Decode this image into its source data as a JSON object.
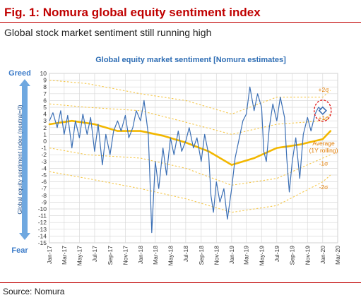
{
  "figure": {
    "title": "Fig. 1: Nomura global equity sentiment index",
    "subtitle": "Global stock market sentiment still running high",
    "source": "Source:  Nomura"
  },
  "colors": {
    "series": "#3b6fb5",
    "average": "#f2b700",
    "bands": "#f5c74a",
    "band_labels": "#e07b00",
    "chart_title": "#2e6db4",
    "axis_label": "#3d7cc9",
    "marker": "#e01010"
  },
  "chart_data": {
    "type": "line",
    "title": "Global equity market sentiment [Nomura estimates]",
    "ylabel": "Global equity sentiment index (neutral=0)",
    "y_top_label": "Greed",
    "y_bottom_label": "Fear",
    "ylim": [
      -15,
      10
    ],
    "yticks": [
      10,
      9,
      8,
      7,
      6,
      5,
      4,
      3,
      2,
      1,
      0,
      -1,
      -2,
      -3,
      -4,
      -5,
      -6,
      -7,
      -8,
      -9,
      -10,
      -11,
      -12,
      -13,
      -14,
      -15
    ],
    "xlim": [
      "2017-01",
      "2020-03"
    ],
    "xticks": [
      "Jan-17",
      "Mar-17",
      "May-17",
      "Jul-17",
      "Sep-17",
      "Nov-17",
      "Jan-18",
      "Mar-18",
      "May-18",
      "Jul-18",
      "Sep-18",
      "Nov-18",
      "Jan-19",
      "Mar-19",
      "May-19",
      "Jul-19",
      "Sep-19",
      "Nov-19",
      "Jan-20",
      "Mar-20"
    ],
    "grid": true,
    "annotations": {
      "plus2": "+2σ",
      "plus1": "+1σ",
      "average": "Average\n(1Y rolling)",
      "minus1": "-1σ",
      "minus2": "-2σ"
    },
    "series": [
      {
        "name": "Sentiment index",
        "points": [
          [
            "2017-01",
            3.0
          ],
          [
            "2017-01-15",
            4.2
          ],
          [
            "2017-02",
            2.0
          ],
          [
            "2017-02-15",
            4.5
          ],
          [
            "2017-03",
            1.0
          ],
          [
            "2017-03-15",
            3.8
          ],
          [
            "2017-04",
            -1.0
          ],
          [
            "2017-04-15",
            3.0
          ],
          [
            "2017-05",
            0.5
          ],
          [
            "2017-05-15",
            4.0
          ],
          [
            "2017-06",
            1.0
          ],
          [
            "2017-06-15",
            3.5
          ],
          [
            "2017-07",
            -1.5
          ],
          [
            "2017-07-15",
            2.5
          ],
          [
            "2017-08",
            -3.5
          ],
          [
            "2017-08-15",
            1.0
          ],
          [
            "2017-09",
            -2.0
          ],
          [
            "2017-09-15",
            1.5
          ],
          [
            "2017-10",
            3.0
          ],
          [
            "2017-10-15",
            1.5
          ],
          [
            "2017-11",
            3.8
          ],
          [
            "2017-11-15",
            0.5
          ],
          [
            "2017-12",
            2.0
          ],
          [
            "2017-12-15",
            4.5
          ],
          [
            "2018-01",
            3.0
          ],
          [
            "2018-01-15",
            6.0
          ],
          [
            "2018-02",
            1.0
          ],
          [
            "2018-02-08",
            -6.0
          ],
          [
            "2018-02-15",
            -13.5
          ],
          [
            "2018-03",
            -3.0
          ],
          [
            "2018-03-15",
            -7.0
          ],
          [
            "2018-04",
            -1.0
          ],
          [
            "2018-04-15",
            -5.0
          ],
          [
            "2018-05",
            0.5
          ],
          [
            "2018-05-15",
            -2.0
          ],
          [
            "2018-06",
            1.5
          ],
          [
            "2018-06-15",
            -1.5
          ],
          [
            "2018-07",
            0.0
          ],
          [
            "2018-07-15",
            2.0
          ],
          [
            "2018-08",
            -1.0
          ],
          [
            "2018-08-15",
            0.5
          ],
          [
            "2018-09",
            -3.0
          ],
          [
            "2018-09-15",
            1.0
          ],
          [
            "2018-10",
            -2.0
          ],
          [
            "2018-10-10",
            -8.0
          ],
          [
            "2018-10-20",
            -10.5
          ],
          [
            "2018-11",
            -6.0
          ],
          [
            "2018-11-15",
            -9.0
          ],
          [
            "2018-12",
            -7.0
          ],
          [
            "2018-12-15",
            -11.5
          ],
          [
            "2019-01",
            -7.0
          ],
          [
            "2019-01-15",
            -2.5
          ],
          [
            "2019-02",
            0.5
          ],
          [
            "2019-02-15",
            3.0
          ],
          [
            "2019-03",
            4.0
          ],
          [
            "2019-03-15",
            8.0
          ],
          [
            "2019-04",
            4.5
          ],
          [
            "2019-04-15",
            7.0
          ],
          [
            "2019-05",
            5.0
          ],
          [
            "2019-05-10",
            -1.5
          ],
          [
            "2019-05-20",
            -3.0
          ],
          [
            "2019-06",
            2.0
          ],
          [
            "2019-06-15",
            5.5
          ],
          [
            "2019-07",
            3.0
          ],
          [
            "2019-07-15",
            6.5
          ],
          [
            "2019-08",
            3.5
          ],
          [
            "2019-08-10",
            -2.5
          ],
          [
            "2019-08-20",
            -7.5
          ],
          [
            "2019-09",
            -3.0
          ],
          [
            "2019-09-15",
            0.5
          ],
          [
            "2019-10",
            -5.5
          ],
          [
            "2019-10-15",
            1.0
          ],
          [
            "2019-11",
            3.5
          ],
          [
            "2019-11-15",
            1.5
          ],
          [
            "2019-12",
            4.0
          ],
          [
            "2019-12-15",
            5.0
          ],
          [
            "2020-01",
            4.5
          ]
        ]
      },
      {
        "name": "Average (1Y rolling)",
        "points": [
          [
            "2017-01",
            2.5
          ],
          [
            "2017-04",
            3.0
          ],
          [
            "2017-07",
            2.5
          ],
          [
            "2017-10",
            1.5
          ],
          [
            "2018-01",
            1.5
          ],
          [
            "2018-04",
            0.8
          ],
          [
            "2018-07",
            -0.2
          ],
          [
            "2018-10",
            -1.5
          ],
          [
            "2019-01",
            -3.5
          ],
          [
            "2019-04",
            -2.5
          ],
          [
            "2019-07",
            -1.0
          ],
          [
            "2019-10",
            -0.5
          ],
          [
            "2020-01",
            0.3
          ],
          [
            "2020-02",
            1.5
          ]
        ]
      },
      {
        "name": "+2σ",
        "points": [
          [
            "2017-01",
            9.0
          ],
          [
            "2017-06",
            8.5
          ],
          [
            "2018-01",
            7.0
          ],
          [
            "2018-07",
            6.0
          ],
          [
            "2019-01",
            4.0
          ],
          [
            "2019-07",
            6.5
          ],
          [
            "2020-01",
            6.5
          ],
          [
            "2020-02",
            7.5
          ]
        ]
      },
      {
        "name": "+1σ",
        "points": [
          [
            "2017-01",
            5.5
          ],
          [
            "2017-06",
            5.0
          ],
          [
            "2018-01",
            4.5
          ],
          [
            "2018-07",
            2.8
          ],
          [
            "2019-01",
            1.0
          ],
          [
            "2019-07",
            2.5
          ],
          [
            "2020-01",
            3.0
          ],
          [
            "2020-02",
            4.0
          ]
        ]
      },
      {
        "name": "-1σ",
        "points": [
          [
            "2017-01",
            -1.0
          ],
          [
            "2017-06",
            -2.0
          ],
          [
            "2018-01",
            -2.5
          ],
          [
            "2018-07",
            -4.0
          ],
          [
            "2019-01",
            -6.5
          ],
          [
            "2019-07",
            -5.5
          ],
          [
            "2020-01",
            -2.5
          ],
          [
            "2020-02",
            -2.0
          ]
        ]
      },
      {
        "name": "-2σ",
        "points": [
          [
            "2017-01",
            -4.5
          ],
          [
            "2017-06",
            -5.5
          ],
          [
            "2018-01",
            -7.0
          ],
          [
            "2018-07",
            -8.5
          ],
          [
            "2019-01",
            -10.5
          ],
          [
            "2019-07",
            -9.5
          ],
          [
            "2020-01",
            -6.0
          ],
          [
            "2020-02",
            -5.0
          ]
        ]
      }
    ],
    "highlight": {
      "x": "2020-01",
      "y": 4.5
    }
  }
}
